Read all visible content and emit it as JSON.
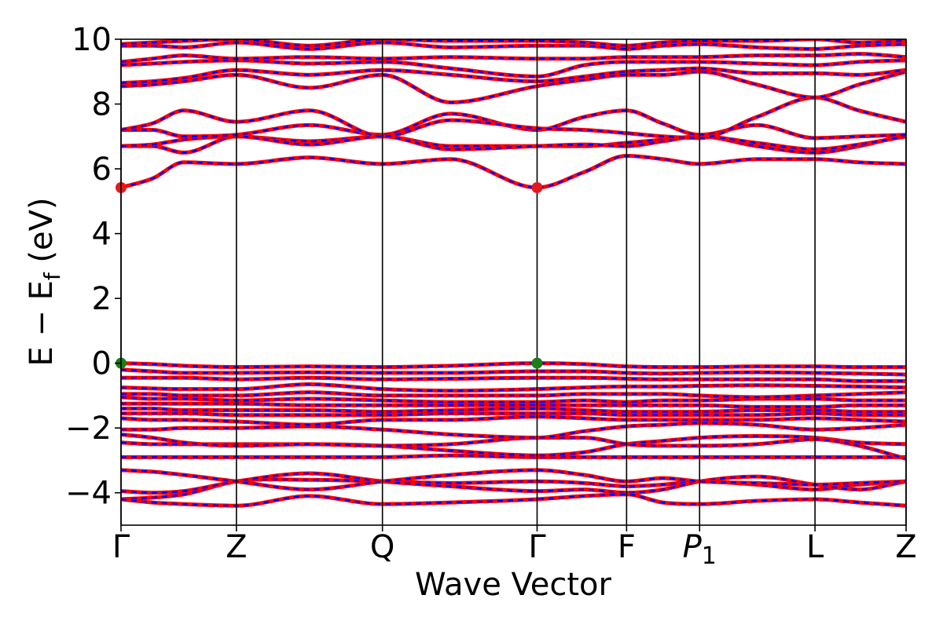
{
  "chart_data": {
    "type": "line",
    "title": "",
    "xlabel": "Wave Vector",
    "ylabel": {
      "main": "E − E",
      "sub": "f",
      "unit": " (eV)"
    },
    "ylim": [
      -5,
      10
    ],
    "yticks": [
      -4,
      -2,
      0,
      2,
      4,
      6,
      8,
      10
    ],
    "ytick_labels": [
      "−4",
      "−2",
      "0",
      "2",
      "4",
      "6",
      "8",
      "10"
    ],
    "kpoints": [
      {
        "label": "Γ",
        "x": 0.0
      },
      {
        "label": "Z",
        "x": 0.147
      },
      {
        "label": "Q",
        "x": 0.333
      },
      {
        "label": "Γ",
        "x": 0.53
      },
      {
        "label": "F",
        "x": 0.644
      },
      {
        "label": "P",
        "sub": "1",
        "italic": true,
        "x": 0.737
      },
      {
        "label": "L",
        "x": 0.884
      },
      {
        "label": "Z",
        "x": 1.0
      }
    ],
    "grid": false,
    "series_style": {
      "line_color": "#ff0000",
      "dash_color": "#0000ff"
    },
    "x": [
      0.0,
      0.04,
      0.08,
      0.147,
      0.24,
      0.333,
      0.42,
      0.53,
      0.59,
      0.644,
      0.69,
      0.737,
      0.81,
      0.884,
      0.94,
      1.0
    ],
    "bands": [
      [
        -4.2,
        -4.15,
        -4.05,
        -3.65,
        -3.6,
        -3.65,
        -3.7,
        -3.65,
        -3.7,
        -3.8,
        -3.75,
        -3.65,
        -3.75,
        -3.9,
        -3.75,
        -3.65
      ],
      [
        -3.95,
        -4.0,
        -3.95,
        -3.65,
        -3.4,
        -3.65,
        -3.8,
        -3.95,
        -3.9,
        -4.0,
        -3.9,
        -3.65,
        -3.5,
        -3.75,
        -3.9,
        -3.65
      ],
      [
        -4.2,
        -4.3,
        -4.35,
        -4.4,
        -4.1,
        -4.35,
        -4.3,
        -4.2,
        -4.1,
        -4.05,
        -4.3,
        -4.35,
        -4.25,
        -4.2,
        -4.3,
        -4.4
      ],
      [
        -3.3,
        -3.35,
        -3.45,
        -3.65,
        -3.9,
        -3.65,
        -3.45,
        -3.3,
        -3.45,
        -3.65,
        -3.55,
        -3.65,
        -3.7,
        -3.75,
        -3.7,
        -3.65
      ],
      [
        -2.9,
        -2.9,
        -2.9,
        -2.9,
        -2.9,
        -2.9,
        -2.85,
        -2.9,
        -2.9,
        -2.9,
        -2.9,
        -2.9,
        -2.9,
        -2.9,
        -2.9,
        -2.9
      ],
      [
        -2.45,
        -2.5,
        -2.5,
        -2.5,
        -2.5,
        -2.55,
        -2.7,
        -2.85,
        -2.75,
        -2.5,
        -2.4,
        -2.3,
        -2.25,
        -2.3,
        -2.45,
        -2.5
      ],
      [
        -2.2,
        -2.3,
        -2.45,
        -2.55,
        -2.5,
        -2.55,
        -2.5,
        -2.3,
        -2.3,
        -2.5,
        -2.55,
        -2.55,
        -2.5,
        -2.35,
        -2.55,
        -2.95
      ],
      [
        -2.05,
        -2.05,
        -2.0,
        -2.0,
        -1.95,
        -2.05,
        -2.2,
        -2.3,
        -2.1,
        -1.95,
        -1.9,
        -1.85,
        -1.9,
        -2.05,
        -2.0,
        -1.9
      ],
      [
        -1.7,
        -1.75,
        -1.75,
        -1.8,
        -1.9,
        -1.75,
        -1.75,
        -1.65,
        -1.7,
        -1.75,
        -1.75,
        -1.75,
        -1.75,
        -1.7,
        -1.75,
        -1.8
      ],
      [
        -1.55,
        -1.55,
        -1.55,
        -1.6,
        -1.6,
        -1.6,
        -1.55,
        -1.55,
        -1.55,
        -1.6,
        -1.6,
        -1.6,
        -1.6,
        -1.55,
        -1.6,
        -1.6
      ],
      [
        -1.4,
        -1.4,
        -1.45,
        -1.45,
        -1.45,
        -1.5,
        -1.45,
        -1.4,
        -1.45,
        -1.5,
        -1.5,
        -1.5,
        -1.45,
        -1.45,
        -1.5,
        -1.5
      ],
      [
        -1.25,
        -1.25,
        -1.25,
        -1.25,
        -1.3,
        -1.3,
        -1.3,
        -1.3,
        -1.3,
        -1.3,
        -1.3,
        -1.3,
        -1.35,
        -1.35,
        -1.3,
        -1.3
      ],
      [
        -1.05,
        -1.1,
        -1.1,
        -1.15,
        -1.1,
        -1.15,
        -1.2,
        -1.2,
        -1.15,
        -1.2,
        -1.15,
        -1.15,
        -1.1,
        -1.1,
        -1.15,
        -1.15
      ],
      [
        -0.95,
        -0.95,
        -1.0,
        -1.0,
        -0.9,
        -1.0,
        -1.0,
        -1.0,
        -0.95,
        -0.95,
        -0.95,
        -1.0,
        -1.05,
        -1.0,
        -0.95,
        -0.9
      ],
      [
        -0.75,
        -0.78,
        -0.8,
        -0.8,
        -0.65,
        -0.8,
        -0.85,
        -0.8,
        -0.75,
        -0.72,
        -0.72,
        -0.7,
        -0.68,
        -0.7,
        -0.72,
        -0.75
      ],
      [
        -0.45,
        -0.45,
        -0.45,
        -0.5,
        -0.45,
        -0.5,
        -0.48,
        -0.45,
        -0.45,
        -0.48,
        -0.5,
        -0.5,
        -0.5,
        -0.5,
        -0.55,
        -0.55
      ],
      [
        -0.2,
        -0.25,
        -0.3,
        -0.3,
        -0.28,
        -0.3,
        -0.3,
        -0.25,
        -0.25,
        -0.3,
        -0.32,
        -0.3,
        -0.28,
        -0.3,
        -0.32,
        -0.35
      ],
      [
        0.0,
        -0.03,
        -0.08,
        -0.12,
        -0.1,
        -0.12,
        -0.08,
        0.0,
        -0.03,
        -0.1,
        -0.12,
        -0.12,
        -0.1,
        -0.1,
        -0.12,
        -0.12
      ],
      [
        5.42,
        5.7,
        6.2,
        6.15,
        6.35,
        6.15,
        6.3,
        5.42,
        5.9,
        6.4,
        6.3,
        6.15,
        6.3,
        6.3,
        6.2,
        6.15
      ],
      [
        6.7,
        6.7,
        6.5,
        7.0,
        6.85,
        7.0,
        6.7,
        6.7,
        6.7,
        6.8,
        6.9,
        7.0,
        6.7,
        6.5,
        6.7,
        7.05
      ],
      [
        6.7,
        6.75,
        6.9,
        7.0,
        6.75,
        7.0,
        6.6,
        6.7,
        6.75,
        6.7,
        6.85,
        7.0,
        6.8,
        6.6,
        6.75,
        7.0
      ],
      [
        7.2,
        7.2,
        7.0,
        7.05,
        7.35,
        7.05,
        7.7,
        7.2,
        7.6,
        7.8,
        7.4,
        7.05,
        7.35,
        6.95,
        7.0,
        7.05
      ],
      [
        7.2,
        7.4,
        7.8,
        7.45,
        7.8,
        7.0,
        7.5,
        7.25,
        7.2,
        7.1,
        7.0,
        6.95,
        7.6,
        8.2,
        7.8,
        7.45
      ],
      [
        8.55,
        8.6,
        8.7,
        8.9,
        8.5,
        8.9,
        8.05,
        8.55,
        8.75,
        8.9,
        8.9,
        9.0,
        8.6,
        8.2,
        8.6,
        9.0
      ],
      [
        8.65,
        8.7,
        8.8,
        9.05,
        8.9,
        9.05,
        8.9,
        8.7,
        8.85,
        9.0,
        9.05,
        9.1,
        8.95,
        8.95,
        8.9,
        9.05
      ],
      [
        9.2,
        9.25,
        9.3,
        9.35,
        9.25,
        9.3,
        9.1,
        8.85,
        9.2,
        9.3,
        9.3,
        9.3,
        9.25,
        9.2,
        9.3,
        9.35
      ],
      [
        9.3,
        9.4,
        9.5,
        9.4,
        9.45,
        9.4,
        9.45,
        9.4,
        9.4,
        9.45,
        9.45,
        9.45,
        9.5,
        9.5,
        9.55,
        9.45
      ],
      [
        9.8,
        9.8,
        9.75,
        9.9,
        9.7,
        9.9,
        9.75,
        9.8,
        9.8,
        9.7,
        9.8,
        9.85,
        9.75,
        9.7,
        9.8,
        9.85
      ],
      [
        9.85,
        9.9,
        9.95,
        10.0,
        9.8,
        10.0,
        9.95,
        9.95,
        9.9,
        9.8,
        9.9,
        9.95,
        9.95,
        10.0,
        9.9,
        9.95
      ]
    ],
    "markers": [
      {
        "x": 0.0,
        "y": 5.42,
        "color": "#e31a1c",
        "name": "cbm-marker"
      },
      {
        "x": 0.53,
        "y": 5.42,
        "color": "#e31a1c",
        "name": "cbm-marker"
      },
      {
        "x": 0.0,
        "y": 0.0,
        "color": "#1a7f1a",
        "name": "vbm-marker"
      },
      {
        "x": 0.53,
        "y": 0.0,
        "color": "#1a7f1a",
        "name": "vbm-marker"
      }
    ]
  }
}
